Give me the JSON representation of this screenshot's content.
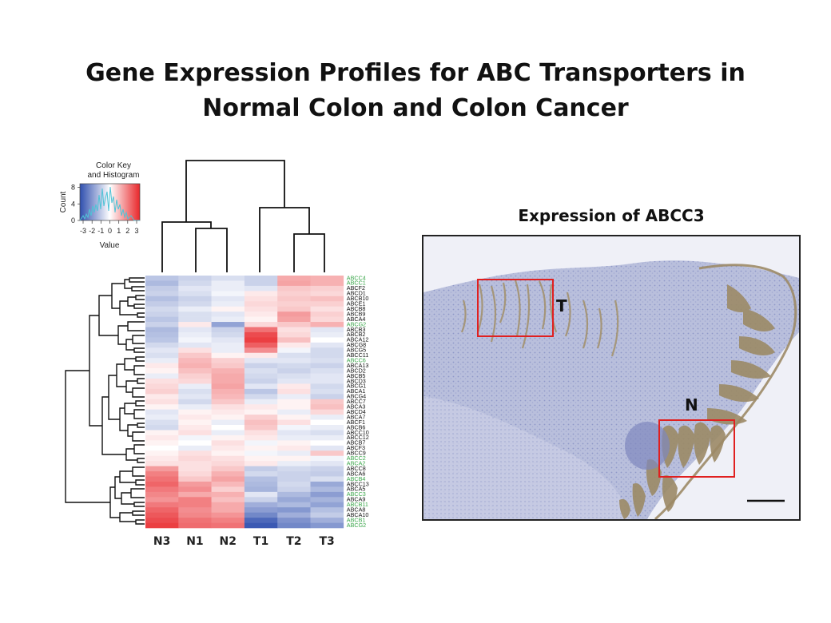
{
  "title": {
    "line1": "Gene Expression Profiles for ABC Transporters in",
    "line2": "Normal Colon and Colon Cancer"
  },
  "colors": {
    "low": "#2f4fae",
    "mid": "#ffffff",
    "high": "#e8262a",
    "highlight_label": "#3aa64a",
    "hist_line": "#4fc3d6",
    "box": "#e02020"
  },
  "heatmap": {
    "columns": [
      "N3",
      "N1",
      "N2",
      "T1",
      "T2",
      "T3"
    ],
    "color_key": {
      "title_line1": "Color Key",
      "title_line2": "and Histogram",
      "y_label": "Count",
      "x_label": "Value",
      "y_ticks": [
        "0",
        "4",
        "8"
      ],
      "x_ticks": [
        "-3",
        "-2",
        "-1",
        "0",
        "1",
        "2",
        "3"
      ]
    },
    "rows": [
      {
        "gene": "ABCC4",
        "highlight": true,
        "values": [
          -0.8,
          -0.6,
          -0.4,
          -0.6,
          1.0,
          0.9
        ]
      },
      {
        "gene": "ABCC1",
        "highlight": true,
        "values": [
          -1.0,
          -0.5,
          -0.2,
          -0.6,
          1.1,
          0.9
        ]
      },
      {
        "gene": "ABCF2",
        "highlight": false,
        "values": [
          -0.7,
          -0.3,
          -0.2,
          -0.3,
          0.6,
          0.5
        ]
      },
      {
        "gene": "ABCD1",
        "highlight": false,
        "values": [
          -0.6,
          -0.4,
          -0.1,
          0.2,
          0.5,
          0.4
        ]
      },
      {
        "gene": "ABCB10",
        "highlight": false,
        "values": [
          -0.9,
          -0.6,
          -0.3,
          0.3,
          0.6,
          0.7
        ]
      },
      {
        "gene": "ABCE1",
        "highlight": false,
        "values": [
          -0.7,
          -0.5,
          -0.2,
          0.4,
          0.5,
          0.5
        ]
      },
      {
        "gene": "ABCB8",
        "highlight": false,
        "values": [
          -0.5,
          -0.2,
          0.1,
          0.3,
          0.6,
          0.3
        ]
      },
      {
        "gene": "ABCB9",
        "highlight": false,
        "values": [
          -0.6,
          -0.4,
          -0.3,
          0.2,
          1.2,
          0.5
        ]
      },
      {
        "gene": "ABCA4",
        "highlight": false,
        "values": [
          -0.8,
          -0.4,
          -0.2,
          0.1,
          1.1,
          0.4
        ]
      },
      {
        "gene": "ABCG2",
        "highlight": true,
        "values": [
          -0.6,
          0.2,
          -1.4,
          0.4,
          0.6,
          0.9
        ]
      },
      {
        "gene": "ABCB3",
        "highlight": false,
        "values": [
          -1.0,
          -0.3,
          -0.6,
          1.8,
          0.3,
          -0.3
        ]
      },
      {
        "gene": "ABCB2",
        "highlight": false,
        "values": [
          -0.9,
          -0.2,
          -0.5,
          2.4,
          0.4,
          -0.2
        ]
      },
      {
        "gene": "ABCA12",
        "highlight": false,
        "values": [
          -0.8,
          -0.1,
          -0.3,
          2.6,
          0.7,
          0.0
        ]
      },
      {
        "gene": "ABCG8",
        "highlight": false,
        "values": [
          -0.5,
          -0.3,
          -0.2,
          2.1,
          0.2,
          -0.3
        ]
      },
      {
        "gene": "ABCG5",
        "highlight": false,
        "values": [
          -0.3,
          0.3,
          -0.2,
          1.4,
          -0.1,
          -0.5
        ]
      },
      {
        "gene": "ABCC11",
        "highlight": false,
        "values": [
          -0.4,
          0.6,
          0.1,
          0.2,
          -0.4,
          -0.5
        ]
      },
      {
        "gene": "ABCC6",
        "highlight": true,
        "values": [
          -0.2,
          0.8,
          0.5,
          -0.3,
          -0.3,
          -0.4
        ]
      },
      {
        "gene": "ABCA13",
        "highlight": false,
        "values": [
          0.2,
          0.9,
          0.6,
          -0.6,
          -0.5,
          -0.6
        ]
      },
      {
        "gene": "ABCD2",
        "highlight": false,
        "values": [
          0.1,
          0.7,
          0.9,
          -0.4,
          -0.6,
          -0.4
        ]
      },
      {
        "gene": "ABCB5",
        "highlight": false,
        "values": [
          -0.2,
          0.5,
          1.0,
          -0.5,
          -0.4,
          -0.3
        ]
      },
      {
        "gene": "ABCD3",
        "highlight": false,
        "values": [
          0.3,
          0.4,
          1.0,
          -0.6,
          -0.3,
          -0.3
        ]
      },
      {
        "gene": "ABCG1",
        "highlight": false,
        "values": [
          0.4,
          -0.2,
          1.1,
          -0.3,
          0.2,
          -0.5
        ]
      },
      {
        "gene": "ABCA1",
        "highlight": false,
        "values": [
          0.5,
          -0.4,
          0.9,
          -0.8,
          0.3,
          -0.4
        ]
      },
      {
        "gene": "ABCG4",
        "highlight": false,
        "values": [
          0.2,
          -0.3,
          0.8,
          -0.5,
          -0.2,
          -0.6
        ]
      },
      {
        "gene": "ABCC7",
        "highlight": false,
        "values": [
          0.3,
          -0.5,
          0.6,
          -0.2,
          0.1,
          0.6
        ]
      },
      {
        "gene": "ABCA3",
        "highlight": false,
        "values": [
          0.1,
          -0.2,
          0.3,
          0.2,
          0.1,
          0.7
        ]
      },
      {
        "gene": "ABCD4",
        "highlight": false,
        "values": [
          -0.3,
          0.1,
          0.2,
          0.1,
          -0.2,
          0.4
        ]
      },
      {
        "gene": "ABCA7",
        "highlight": false,
        "values": [
          -0.2,
          0.2,
          0.1,
          0.5,
          0.1,
          -0.2
        ]
      },
      {
        "gene": "ABCF1",
        "highlight": false,
        "values": [
          -0.4,
          0.1,
          -0.2,
          0.7,
          0.3,
          0.0
        ]
      },
      {
        "gene": "ABCB6",
        "highlight": false,
        "values": [
          -0.5,
          0.2,
          0.0,
          0.6,
          -0.1,
          -0.2
        ]
      },
      {
        "gene": "ABCC10",
        "highlight": false,
        "values": [
          0.1,
          0.3,
          -0.2,
          0.3,
          -0.3,
          -0.4
        ]
      },
      {
        "gene": "ABCC12",
        "highlight": false,
        "values": [
          0.2,
          -0.1,
          0.1,
          0.2,
          -0.2,
          -0.2
        ]
      },
      {
        "gene": "ABCB7",
        "highlight": false,
        "values": [
          0.1,
          0.0,
          0.3,
          -0.1,
          0.1,
          0.0
        ]
      },
      {
        "gene": "ABCF3",
        "highlight": false,
        "values": [
          0.0,
          -0.2,
          0.2,
          0.1,
          0.2,
          -0.3
        ]
      },
      {
        "gene": "ABCC9",
        "highlight": false,
        "values": [
          0.1,
          0.3,
          0.1,
          -0.1,
          -0.2,
          0.6
        ]
      },
      {
        "gene": "ABCC2",
        "highlight": true,
        "values": [
          0.2,
          0.4,
          0.3,
          0.1,
          0.1,
          -0.1
        ]
      },
      {
        "gene": "ABCA2",
        "highlight": true,
        "values": [
          0.3,
          0.3,
          0.4,
          0.2,
          -0.2,
          -0.3
        ]
      },
      {
        "gene": "ABCC8",
        "highlight": false,
        "values": [
          1.2,
          0.3,
          0.6,
          -0.7,
          -0.5,
          -0.6
        ]
      },
      {
        "gene": "ABCA6",
        "highlight": false,
        "values": [
          1.6,
          0.4,
          0.9,
          -0.5,
          -0.6,
          -0.7
        ]
      },
      {
        "gene": "ABCB4",
        "highlight": true,
        "values": [
          1.8,
          0.6,
          1.1,
          -0.9,
          -0.6,
          -0.4
        ]
      },
      {
        "gene": "ABCC13",
        "highlight": false,
        "values": [
          2.0,
          1.2,
          0.8,
          -1.0,
          -0.5,
          -1.3
        ]
      },
      {
        "gene": "ABCA5",
        "highlight": false,
        "values": [
          1.7,
          1.4,
          0.5,
          -1.1,
          -0.6,
          -1.0
        ]
      },
      {
        "gene": "ABCC3",
        "highlight": true,
        "values": [
          1.5,
          1.0,
          0.9,
          -0.3,
          -1.0,
          -1.5
        ]
      },
      {
        "gene": "ABCA9",
        "highlight": false,
        "values": [
          1.3,
          1.6,
          0.7,
          -0.6,
          -1.3,
          -1.1
        ]
      },
      {
        "gene": "ABCB11",
        "highlight": true,
        "values": [
          1.7,
          1.6,
          1.0,
          -1.2,
          -1.0,
          -1.4
        ]
      },
      {
        "gene": "ABCA8",
        "highlight": false,
        "values": [
          2.0,
          1.4,
          1.0,
          -1.5,
          -1.6,
          -0.9
        ]
      },
      {
        "gene": "ABCA10",
        "highlight": false,
        "values": [
          2.2,
          1.5,
          1.3,
          -1.9,
          -1.2,
          -0.7
        ]
      },
      {
        "gene": "ABCB1",
        "highlight": true,
        "values": [
          2.4,
          1.8,
          1.6,
          -2.5,
          -1.7,
          -1.2
        ]
      },
      {
        "gene": "ABCG2",
        "highlight": true,
        "values": [
          2.6,
          1.9,
          1.8,
          -2.8,
          -1.9,
          -1.6
        ]
      }
    ]
  },
  "image_panel": {
    "title": "Expression of ABCC3",
    "box_labels": [
      "T",
      "N"
    ]
  }
}
